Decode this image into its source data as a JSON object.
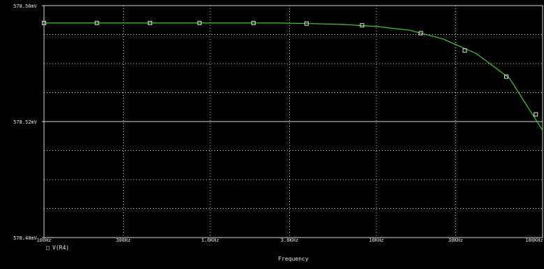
{
  "chart_data": {
    "type": "line",
    "title": "",
    "xlabel": "Frequency",
    "ylabel": "",
    "x_scale": "log",
    "x_ticks": [
      {
        "label": "100Hz",
        "value": 100
      },
      {
        "label": "300Hz",
        "value": 300
      },
      {
        "label": "1.0KHz",
        "value": 1000
      },
      {
        "label": "3.0KHz",
        "value": 3000
      },
      {
        "label": "10KHz",
        "value": 10000
      },
      {
        "label": "30KHz",
        "value": 30000
      },
      {
        "label": "100KHz",
        "value": 100000
      }
    ],
    "xlim": [
      100,
      100000
    ],
    "y_ticks": [
      {
        "label": "578.56mV",
        "value": 578.56
      },
      {
        "label": "578.52mV",
        "value": 578.52
      },
      {
        "label": "578.48mV",
        "value": 578.48
      }
    ],
    "ylim": [
      578.48,
      578.56
    ],
    "grid": true,
    "series": [
      {
        "name": "V(R4)",
        "marker": "square",
        "line_color": "#3fce2f",
        "marker_color": "#e6e6e6",
        "x": [
          100,
          158,
          251,
          398,
          631,
          1000,
          1585,
          2512,
          3981,
          6310,
          10000,
          15850,
          25120,
          39810,
          63100,
          100000
        ],
        "y": [
          578.554,
          578.554,
          578.554,
          578.554,
          578.554,
          578.554,
          578.554,
          578.554,
          578.5538,
          578.5535,
          578.5528,
          578.5515,
          578.5485,
          578.5435,
          578.535,
          578.517
        ],
        "marker_x": [
          100,
          208,
          434,
          862,
          1820,
          3800,
          8200,
          18500,
          34000,
          60500,
          91000
        ],
        "marker_y": [
          578.554,
          578.554,
          578.554,
          578.554,
          578.554,
          578.5538,
          578.5532,
          578.5505,
          578.5445,
          578.5355,
          578.5225
        ]
      }
    ]
  },
  "legend": {
    "marker_symbol": "□",
    "label": "V(R4)"
  },
  "colors": {
    "background": "#000000",
    "axis": "#d8d8d8",
    "grid": "#d8d8d8",
    "trace": "#3fce2f",
    "marker": "#e6e6e6",
    "text": "#e6e6e6"
  }
}
